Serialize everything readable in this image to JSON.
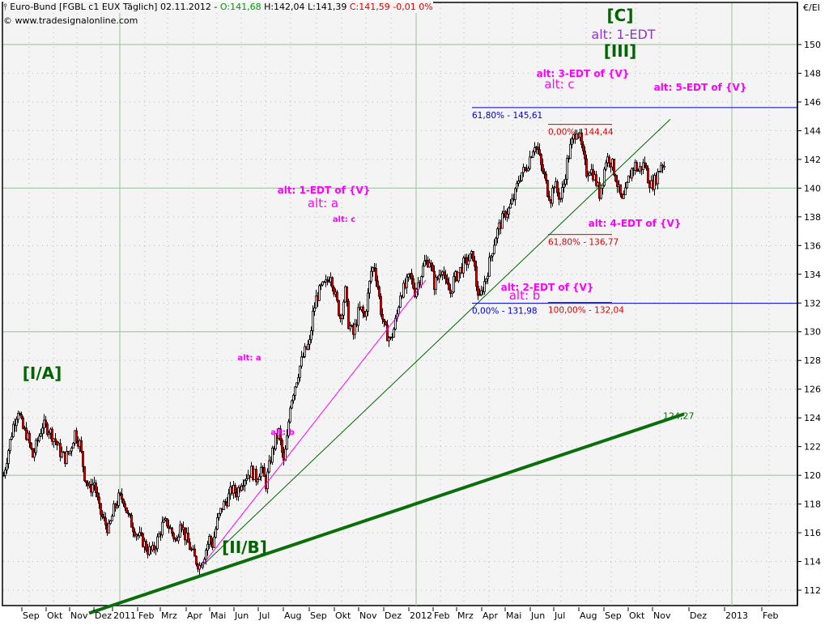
{
  "header": {
    "symbol_title": "Euro-Bund [FGBL c1 EUX  Täglich] 02.11.2012 - ",
    "open": "O:141,68",
    "high_low": " H:142,04 L:141,39 ",
    "close_change": "C:141,59 -0,01 0%",
    "copyright": "© www.tradesignalonline.com",
    "unit": "€/EI"
  },
  "colors": {
    "background": "#f4f4f4",
    "grid_solid": "#a8c8a8",
    "grid_dotted": "#b8b8b8",
    "up_candle": "#ffffff",
    "down_candle": "#e00000",
    "wick": "#000000",
    "wave_label_green": "#006400",
    "wave_label_purple": "#9933cc",
    "alt_label_magenta": "#ff00ff",
    "fib_blue": "#0000cc",
    "fib_red": "#dd0000",
    "trend_thick": "#0a6e0a"
  },
  "chart_data": {
    "type": "candlestick",
    "title": "Euro-Bund [FGBL c1 EUX Täglich] 02.11.2012",
    "xlabel": "",
    "ylabel": "€/EI",
    "ylim": [
      111,
      151
    ],
    "y_ticks": [
      112,
      114,
      116,
      118,
      120,
      122,
      124,
      126,
      128,
      130,
      132,
      134,
      136,
      138,
      140,
      142,
      144,
      146,
      148,
      150
    ],
    "x_ticks": [
      {
        "label": "Sep",
        "x": 36
      },
      {
        "label": "Okt",
        "x": 66
      },
      {
        "label": "Nov",
        "x": 95
      },
      {
        "label": "Dez",
        "x": 125
      },
      {
        "label": "2011",
        "x": 148
      },
      {
        "label": "Feb",
        "x": 179
      },
      {
        "label": "Mrz",
        "x": 207
      },
      {
        "label": "Apr",
        "x": 239
      },
      {
        "label": "Mai",
        "x": 268
      },
      {
        "label": "Jun",
        "x": 298
      },
      {
        "label": "Jul",
        "x": 328
      },
      {
        "label": "Aug",
        "x": 359
      },
      {
        "label": "Sep",
        "x": 391
      },
      {
        "label": "Okt",
        "x": 422
      },
      {
        "label": "Nov",
        "x": 452
      },
      {
        "label": "Dez",
        "x": 483
      },
      {
        "label": "2012",
        "x": 514
      },
      {
        "label": "Feb",
        "x": 544
      },
      {
        "label": "Mrz",
        "x": 573
      },
      {
        "label": "Apr",
        "x": 604
      },
      {
        "label": "Mai",
        "x": 633
      },
      {
        "label": "Jun",
        "x": 664
      },
      {
        "label": "Jul",
        "x": 693
      },
      {
        "label": "Aug",
        "x": 724
      },
      {
        "label": "Sep",
        "x": 755
      },
      {
        "label": "Okt",
        "x": 785
      },
      {
        "label": "Nov",
        "x": 815
      },
      {
        "label": "Dez",
        "x": 860
      },
      {
        "label": "2013",
        "x": 904
      },
      {
        "label": "Feb",
        "x": 950
      }
    ],
    "solid_h_grid": [
      150,
      140,
      130,
      120
    ],
    "solid_v_grid_x": [
      148,
      514,
      904
    ],
    "ohlc_summary": {
      "open": 141.68,
      "high": 142.04,
      "low": 141.39,
      "close": 141.59,
      "change": -0.01,
      "change_pct": 0
    },
    "price_path": [
      {
        "x": 4,
        "p": 120.0
      },
      {
        "x": 10,
        "p": 121.8
      },
      {
        "x": 16,
        "p": 123.5
      },
      {
        "x": 22,
        "p": 124.6
      },
      {
        "x": 27,
        "p": 123.3
      },
      {
        "x": 33,
        "p": 122.8
      },
      {
        "x": 40,
        "p": 121.3
      },
      {
        "x": 46,
        "p": 122.4
      },
      {
        "x": 52,
        "p": 123.5
      },
      {
        "x": 60,
        "p": 123.2
      },
      {
        "x": 68,
        "p": 122.4
      },
      {
        "x": 74,
        "p": 121.6
      },
      {
        "x": 80,
        "p": 121.2
      },
      {
        "x": 86,
        "p": 121.7
      },
      {
        "x": 92,
        "p": 123.0
      },
      {
        "x": 98,
        "p": 122.2
      },
      {
        "x": 104,
        "p": 120.0
      },
      {
        "x": 110,
        "p": 119.0
      },
      {
        "x": 116,
        "p": 119.5
      },
      {
        "x": 122,
        "p": 117.6
      },
      {
        "x": 128,
        "p": 116.8
      },
      {
        "x": 134,
        "p": 116.2
      },
      {
        "x": 140,
        "p": 117.6
      },
      {
        "x": 146,
        "p": 118.4
      },
      {
        "x": 152,
        "p": 118.4
      },
      {
        "x": 158,
        "p": 117.1
      },
      {
        "x": 164,
        "p": 116.4
      },
      {
        "x": 170,
        "p": 115.8
      },
      {
        "x": 176,
        "p": 115.4
      },
      {
        "x": 182,
        "p": 114.8
      },
      {
        "x": 188,
        "p": 114.7
      },
      {
        "x": 194,
        "p": 115.5
      },
      {
        "x": 200,
        "p": 116.5
      },
      {
        "x": 206,
        "p": 116.7
      },
      {
        "x": 212,
        "p": 116.0
      },
      {
        "x": 218,
        "p": 115.3
      },
      {
        "x": 222,
        "p": 117.0
      },
      {
        "x": 228,
        "p": 115.8
      },
      {
        "x": 234,
        "p": 115.0
      },
      {
        "x": 240,
        "p": 114.2
      },
      {
        "x": 246,
        "p": 113.7
      },
      {
        "x": 252,
        "p": 114.5
      },
      {
        "x": 258,
        "p": 115.6
      },
      {
        "x": 262,
        "p": 115.2
      },
      {
        "x": 268,
        "p": 116.8
      },
      {
        "x": 274,
        "p": 117.8
      },
      {
        "x": 280,
        "p": 118.3
      },
      {
        "x": 286,
        "p": 119.0
      },
      {
        "x": 292,
        "p": 118.8
      },
      {
        "x": 298,
        "p": 119.6
      },
      {
        "x": 304,
        "p": 120.0
      },
      {
        "x": 310,
        "p": 120.3
      },
      {
        "x": 316,
        "p": 119.8
      },
      {
        "x": 322,
        "p": 120.5
      },
      {
        "x": 328,
        "p": 119.4
      },
      {
        "x": 334,
        "p": 121.2
      },
      {
        "x": 340,
        "p": 122.5
      },
      {
        "x": 344,
        "p": 123.0
      },
      {
        "x": 350,
        "p": 120.8
      },
      {
        "x": 354,
        "p": 122.5
      },
      {
        "x": 358,
        "p": 125.0
      },
      {
        "x": 364,
        "p": 126.3
      },
      {
        "x": 370,
        "p": 127.6
      },
      {
        "x": 376,
        "p": 128.6
      },
      {
        "x": 382,
        "p": 129.2
      },
      {
        "x": 386,
        "p": 131.2
      },
      {
        "x": 390,
        "p": 132.3
      },
      {
        "x": 396,
        "p": 133.0
      },
      {
        "x": 402,
        "p": 133.3
      },
      {
        "x": 408,
        "p": 134.1
      },
      {
        "x": 414,
        "p": 132.4
      },
      {
        "x": 420,
        "p": 131.0
      },
      {
        "x": 426,
        "p": 132.8
      },
      {
        "x": 430,
        "p": 130.6
      },
      {
        "x": 436,
        "p": 129.8
      },
      {
        "x": 442,
        "p": 131.3
      },
      {
        "x": 446,
        "p": 131.5
      },
      {
        "x": 450,
        "p": 131.0
      },
      {
        "x": 454,
        "p": 132.5
      },
      {
        "x": 458,
        "p": 134.2
      },
      {
        "x": 462,
        "p": 134.6
      },
      {
        "x": 466,
        "p": 133.2
      },
      {
        "x": 470,
        "p": 131.5
      },
      {
        "x": 474,
        "p": 130.3
      },
      {
        "x": 478,
        "p": 129.8
      },
      {
        "x": 482,
        "p": 129.4
      },
      {
        "x": 486,
        "p": 130.2
      },
      {
        "x": 490,
        "p": 131.2
      },
      {
        "x": 494,
        "p": 132.7
      },
      {
        "x": 500,
        "p": 133.1
      },
      {
        "x": 506,
        "p": 133.9
      },
      {
        "x": 512,
        "p": 132.8
      },
      {
        "x": 518,
        "p": 133.7
      },
      {
        "x": 524,
        "p": 134.8
      },
      {
        "x": 530,
        "p": 135.0
      },
      {
        "x": 536,
        "p": 133.3
      },
      {
        "x": 540,
        "p": 133.7
      },
      {
        "x": 546,
        "p": 134.6
      },
      {
        "x": 550,
        "p": 133.3
      },
      {
        "x": 556,
        "p": 132.7
      },
      {
        "x": 560,
        "p": 133.6
      },
      {
        "x": 566,
        "p": 134.1
      },
      {
        "x": 572,
        "p": 134.7
      },
      {
        "x": 578,
        "p": 135.0
      },
      {
        "x": 584,
        "p": 135.3
      },
      {
        "x": 588,
        "p": 133.3
      },
      {
        "x": 592,
        "p": 132.2
      },
      {
        "x": 596,
        "p": 133.1
      },
      {
        "x": 600,
        "p": 133.8
      },
      {
        "x": 604,
        "p": 134.8
      },
      {
        "x": 608,
        "p": 135.8
      },
      {
        "x": 612,
        "p": 136.7
      },
      {
        "x": 616,
        "p": 137.3
      },
      {
        "x": 620,
        "p": 137.8
      },
      {
        "x": 624,
        "p": 138.3
      },
      {
        "x": 628,
        "p": 138.5
      },
      {
        "x": 632,
        "p": 139.0
      },
      {
        "x": 636,
        "p": 139.6
      },
      {
        "x": 640,
        "p": 140.6
      },
      {
        "x": 644,
        "p": 141.1
      },
      {
        "x": 648,
        "p": 141.2
      },
      {
        "x": 652,
        "p": 141.8
      },
      {
        "x": 656,
        "p": 142.5
      },
      {
        "x": 660,
        "p": 143.1
      },
      {
        "x": 664,
        "p": 142.6
      },
      {
        "x": 668,
        "p": 141.5
      },
      {
        "x": 672,
        "p": 140.8
      },
      {
        "x": 676,
        "p": 139.8
      },
      {
        "x": 680,
        "p": 139.3
      },
      {
        "x": 684,
        "p": 140.4
      },
      {
        "x": 688,
        "p": 139.7
      },
      {
        "x": 692,
        "p": 139.3
      },
      {
        "x": 696,
        "p": 140.3
      },
      {
        "x": 700,
        "p": 141.8
      },
      {
        "x": 704,
        "p": 142.8
      },
      {
        "x": 708,
        "p": 143.5
      },
      {
        "x": 712,
        "p": 144.2
      },
      {
        "x": 716,
        "p": 143.4
      },
      {
        "x": 720,
        "p": 142.2
      },
      {
        "x": 724,
        "p": 141.1
      },
      {
        "x": 728,
        "p": 141.4
      },
      {
        "x": 732,
        "p": 141.0
      },
      {
        "x": 736,
        "p": 140.4
      },
      {
        "x": 740,
        "p": 139.6
      },
      {
        "x": 744,
        "p": 140.6
      },
      {
        "x": 748,
        "p": 142.0
      },
      {
        "x": 752,
        "p": 142.1
      },
      {
        "x": 756,
        "p": 141.6
      },
      {
        "x": 760,
        "p": 140.8
      },
      {
        "x": 764,
        "p": 139.8
      },
      {
        "x": 768,
        "p": 139.0
      },
      {
        "x": 772,
        "p": 139.6
      },
      {
        "x": 776,
        "p": 140.6
      },
      {
        "x": 780,
        "p": 141.3
      },
      {
        "x": 784,
        "p": 141.6
      },
      {
        "x": 788,
        "p": 141.2
      },
      {
        "x": 792,
        "p": 141.5
      },
      {
        "x": 796,
        "p": 141.7
      },
      {
        "x": 800,
        "p": 140.7
      },
      {
        "x": 804,
        "p": 140.2
      },
      {
        "x": 808,
        "p": 140.5
      },
      {
        "x": 812,
        "p": 141.0
      },
      {
        "x": 816,
        "p": 141.7
      },
      {
        "x": 820,
        "p": 141.6
      }
    ],
    "trendlines": [
      {
        "name": "thick-green-support",
        "color": "#0a6e0a",
        "width": 4,
        "x1": 110,
        "p1": 110.4,
        "x2": 845,
        "p2": 124.27,
        "label": "124,27"
      },
      {
        "name": "thin-green-trend",
        "color": "#006400",
        "width": 1,
        "x1": 248,
        "p1": 113.6,
        "x2": 828,
        "p2": 144.8
      },
      {
        "name": "magenta-trend",
        "color": "#ff00ff",
        "width": 1,
        "x1": 248,
        "p1": 113.6,
        "x2": 526,
        "p2": 133.6
      }
    ],
    "fib_levels": [
      {
        "label": "61,80% - 145,61",
        "price": 145.61,
        "color": "#0000cc",
        "x1": 583,
        "x2": 985,
        "label_x": 583,
        "label_side": "below"
      },
      {
        "label": "0,00% - 131,98",
        "price": 131.98,
        "color": "#0000cc",
        "x1": 583,
        "x2": 985,
        "label_x": 583,
        "label_side": "below"
      },
      {
        "label": "0,00% - 144,44",
        "price": 144.44,
        "color": "#dd0000",
        "x1": 677,
        "x2": 756,
        "label_x": 677,
        "label_side": "below"
      },
      {
        "label": "61,80% - 136,77",
        "price": 136.77,
        "color": "#dd0000",
        "x1": 677,
        "x2": 756,
        "label_x": 677,
        "label_side": "below"
      },
      {
        "label": "100,00% - 132,04",
        "price": 132.04,
        "color": "#dd0000",
        "x1": 677,
        "x2": 756,
        "label_x": 677,
        "label_side": "below"
      }
    ],
    "wave_labels": [
      {
        "text": "[C]",
        "x": 766,
        "y": 26,
        "color": "#006400",
        "size": 20,
        "weight": "bold",
        "font": "serif"
      },
      {
        "text": "alt: 1-EDT",
        "x": 770,
        "y": 48,
        "color": "#9933cc",
        "size": 16,
        "weight": "normal",
        "font": "sans"
      },
      {
        "text": "[III]",
        "x": 766,
        "y": 70,
        "color": "#006400",
        "size": 20,
        "weight": "bold",
        "font": "serif"
      },
      {
        "text": "alt: 3-EDT of {V}",
        "x": 720,
        "y": 95,
        "color": "#ff00ff",
        "size": 12,
        "weight": "bold",
        "font": "sans"
      },
      {
        "text": "alt: c",
        "x": 691,
        "y": 109,
        "color": "#ff00ff",
        "size": 15,
        "weight": "normal",
        "font": "sans"
      },
      {
        "text": "alt: 5-EDT of {V}",
        "x": 865,
        "y": 112,
        "color": "#ff00ff",
        "size": 12,
        "weight": "bold",
        "font": "sans"
      },
      {
        "text": "alt: 1-EDT of {V}",
        "x": 400,
        "y": 239,
        "color": "#ff00ff",
        "size": 12,
        "weight": "bold",
        "font": "sans"
      },
      {
        "text": "alt: a",
        "x": 399,
        "y": 256,
        "color": "#ff00ff",
        "size": 15,
        "weight": "normal",
        "font": "sans"
      },
      {
        "text": "alt: c",
        "x": 425,
        "y": 274,
        "color": "#ff00ff",
        "size": 10,
        "weight": "bold",
        "font": "sans"
      },
      {
        "text": "alt: 4-EDT of {V}",
        "x": 784,
        "y": 280,
        "color": "#ff00ff",
        "size": 12,
        "weight": "bold",
        "font": "sans"
      },
      {
        "text": "alt: 2-EDT of {V}",
        "x": 676,
        "y": 359,
        "color": "#ff00ff",
        "size": 12,
        "weight": "bold",
        "font": "sans"
      },
      {
        "text": "alt: b",
        "x": 648,
        "y": 370,
        "color": "#ff00ff",
        "size": 15,
        "weight": "normal",
        "font": "sans"
      },
      {
        "text": "alt: a",
        "x": 308,
        "y": 445,
        "color": "#ff00ff",
        "size": 10,
        "weight": "bold",
        "font": "sans"
      },
      {
        "text": "[I/A]",
        "x": 52,
        "y": 468,
        "color": "#006400",
        "size": 20,
        "weight": "bold",
        "font": "serif"
      },
      {
        "text": "alt: b",
        "x": 349,
        "y": 537,
        "color": "#ff00ff",
        "size": 10,
        "weight": "bold",
        "font": "sans"
      },
      {
        "text": "[II/B]",
        "x": 302,
        "y": 683,
        "color": "#006400",
        "size": 20,
        "weight": "bold",
        "font": "serif"
      }
    ]
  }
}
